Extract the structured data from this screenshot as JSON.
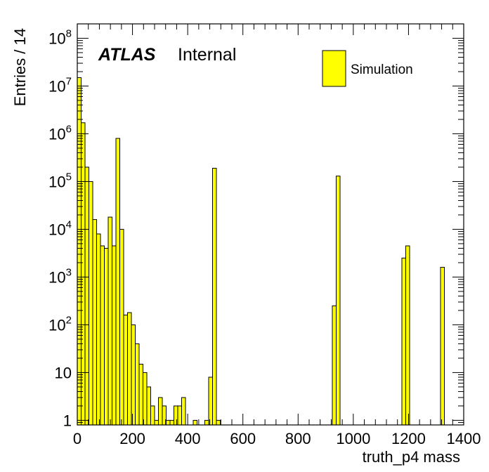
{
  "chart_data": {
    "type": "bar",
    "histogram": true,
    "xlabel": "truth_p4 mass",
    "ylabel": "Entries / 14",
    "xlim": [
      0,
      1400
    ],
    "ylim": [
      0.8,
      200000000
    ],
    "yscale": "log",
    "bin_width": 14,
    "bar_color": "#ffff00",
    "x_ticks": [
      "0",
      "200",
      "400",
      "600",
      "800",
      "1000",
      "1200",
      "1400"
    ],
    "y_ticks": [
      {
        "base": "1",
        "exp": ""
      },
      {
        "base": "10",
        "exp": ""
      },
      {
        "base": "10",
        "exp": "2"
      },
      {
        "base": "10",
        "exp": "3"
      },
      {
        "base": "10",
        "exp": "4"
      },
      {
        "base": "10",
        "exp": "5"
      },
      {
        "base": "10",
        "exp": "6"
      },
      {
        "base": "10",
        "exp": "7"
      },
      {
        "base": "10",
        "exp": "8"
      }
    ],
    "label_main": "ATLAS",
    "label_sub": "Internal",
    "series": [
      {
        "name": "Simulation",
        "bins": [
          {
            "x": 0,
            "y": 15000000
          },
          {
            "x": 14,
            "y": 1700000
          },
          {
            "x": 28,
            "y": 200000
          },
          {
            "x": 42,
            "y": 100000
          },
          {
            "x": 56,
            "y": 16000
          },
          {
            "x": 70,
            "y": 8000
          },
          {
            "x": 84,
            "y": 4500
          },
          {
            "x": 98,
            "y": 4000
          },
          {
            "x": 112,
            "y": 18000
          },
          {
            "x": 126,
            "y": 4500
          },
          {
            "x": 140,
            "y": 800000
          },
          {
            "x": 154,
            "y": 10000
          },
          {
            "x": 168,
            "y": 160
          },
          {
            "x": 182,
            "y": 180
          },
          {
            "x": 196,
            "y": 100
          },
          {
            "x": 210,
            "y": 40
          },
          {
            "x": 224,
            "y": 15
          },
          {
            "x": 238,
            "y": 10
          },
          {
            "x": 252,
            "y": 5
          },
          {
            "x": 266,
            "y": 2
          },
          {
            "x": 280,
            "y": 1
          },
          {
            "x": 294,
            "y": 3
          },
          {
            "x": 308,
            "y": 2
          },
          {
            "x": 322,
            "y": 1
          },
          {
            "x": 336,
            "y": 1
          },
          {
            "x": 350,
            "y": 2
          },
          {
            "x": 364,
            "y": 2
          },
          {
            "x": 378,
            "y": 3
          },
          {
            "x": 420,
            "y": 1
          },
          {
            "x": 462,
            "y": 1
          },
          {
            "x": 476,
            "y": 8
          },
          {
            "x": 490,
            "y": 190000
          },
          {
            "x": 504,
            "y": 1
          },
          {
            "x": 924,
            "y": 250
          },
          {
            "x": 938,
            "y": 130000
          },
          {
            "x": 1176,
            "y": 2500
          },
          {
            "x": 1190,
            "y": 4500
          },
          {
            "x": 1316,
            "y": 1600
          }
        ]
      }
    ]
  }
}
